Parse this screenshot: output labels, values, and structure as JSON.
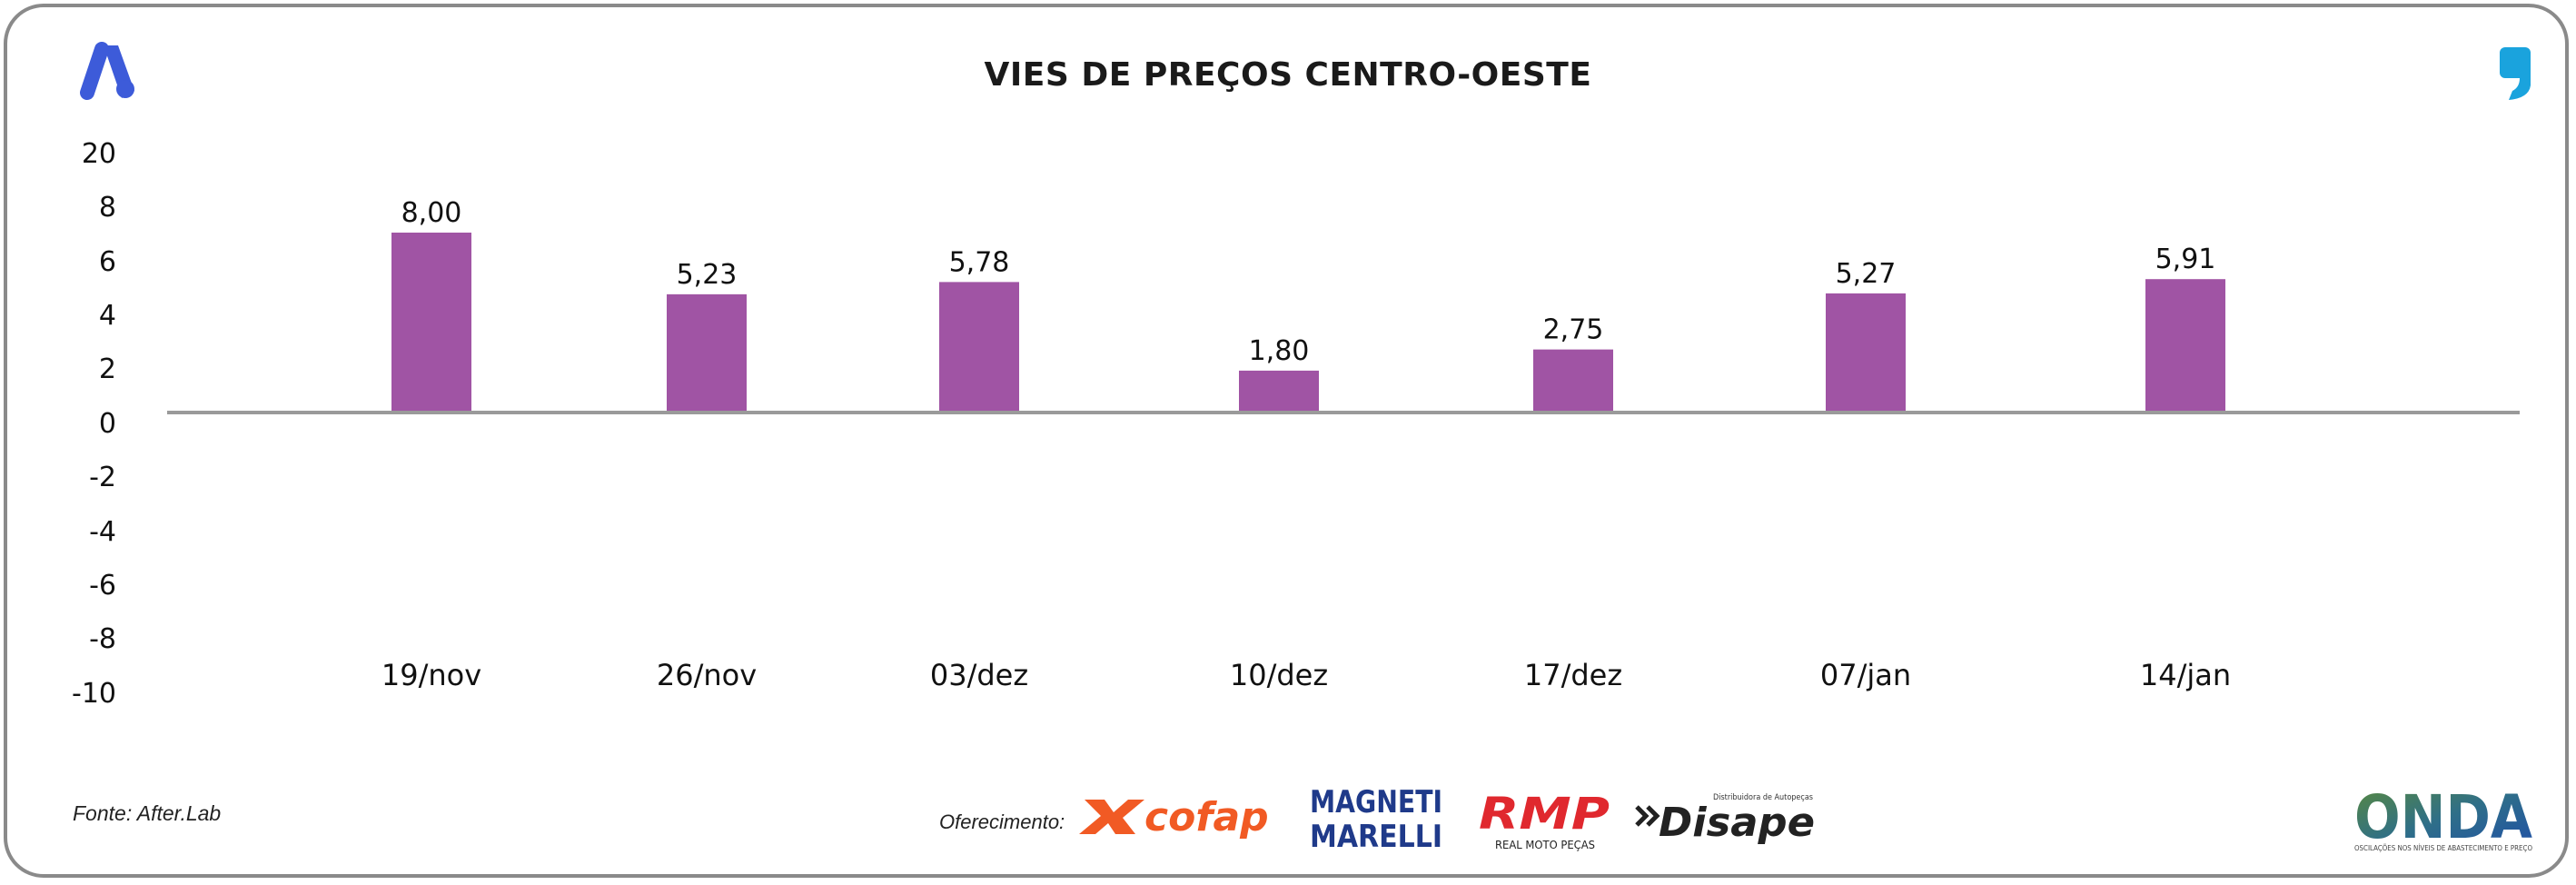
{
  "title": "VIES DE PREÇOS CENTRO-OESTE",
  "source": "Fonte: After.Lab",
  "sponsors": {
    "label": "Oferecimento:",
    "cofap": "cofap",
    "magneti_line1": "MAGNETI",
    "magneti_line2": "MARELLI",
    "rmp": "RMP",
    "rmp_sub": "REAL MOTO PEÇAS",
    "disape": "Disape",
    "disape_sub": "Distribuidora de Autopeças"
  },
  "onda": {
    "name": "ONDA",
    "tagline": "OSCILAÇÕES NOS NÍVEIS DE ABASTECIMENTO E PREÇO"
  },
  "colors": {
    "bar": "#A054A4",
    "axis": "#9a9a9a",
    "logo_blue": "#3d5bd9",
    "quote_blue": "#1aa3dd",
    "cofap_orange": "#f15a24",
    "rmp_red": "#e0282e",
    "magneti_blue": "#1f3a8a"
  },
  "icons": {
    "top_left": "after-lab-a-logo-icon",
    "top_right": "quote-mark-logo-icon"
  },
  "chart_data": {
    "type": "bar",
    "categories": [
      "19/nov",
      "26/nov",
      "03/dez",
      "10/dez",
      "17/dez",
      "07/jan",
      "14/jan"
    ],
    "values": [
      8.0,
      5.23,
      5.78,
      1.8,
      2.75,
      5.27,
      5.91
    ],
    "data_labels": [
      "8,00",
      "5,23",
      "5,78",
      "1,80",
      "2,75",
      "5,27",
      "5,91"
    ],
    "y_ticks": [
      20,
      8,
      6,
      4,
      2,
      0,
      -2,
      -4,
      -6,
      -8,
      -10
    ],
    "ylim": [
      -10,
      20
    ],
    "grid": false,
    "legend": "none"
  }
}
